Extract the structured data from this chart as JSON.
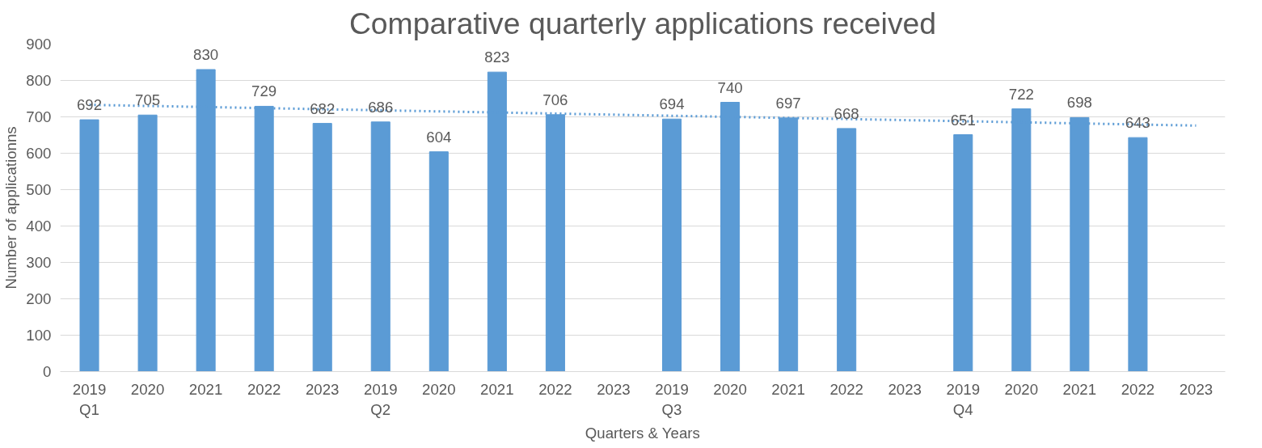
{
  "chart_data": {
    "type": "bar",
    "title": "Comparative quarterly applications received",
    "xlabel": "Quarters & Years",
    "ylabel": "Number of applicationns",
    "categories": [
      "2019\nQ1",
      "2020",
      "2021",
      "2022",
      "2023",
      "2019\nQ2",
      "2020",
      "2021",
      "2022",
      "2023",
      "2019\nQ3",
      "2020",
      "2021",
      "2022",
      "2023",
      "2019\nQ4",
      "2020",
      "2021",
      "2022",
      "2023"
    ],
    "series": [
      {
        "color": "#5b9bd5",
        "values": [
          692,
          705,
          830,
          729,
          682,
          686,
          604,
          823,
          706,
          null,
          694,
          740,
          697,
          668,
          null,
          651,
          722,
          698,
          643,
          null
        ],
        "value_labels": [
          "692",
          "705",
          "830",
          "729",
          "682",
          "686",
          "604",
          "823",
          "706",
          null,
          "694",
          "740",
          "697",
          "668",
          null,
          "651",
          "722",
          "698",
          "643",
          null
        ]
      },
      {
        "type": "line",
        "color": "#5b9bd5",
        "line_style": "dotted",
        "values": [
          733,
          730,
          727,
          724,
          721,
          718,
          715,
          712,
          709,
          706,
          703,
          700,
          697,
          694,
          691,
          688,
          685,
          682,
          679,
          676
        ]
      }
    ],
    "ylim": [
      0,
      900
    ],
    "yticks": [
      0,
      100,
      200,
      300,
      400,
      500,
      600,
      700,
      800,
      900
    ],
    "grid": "y"
  }
}
